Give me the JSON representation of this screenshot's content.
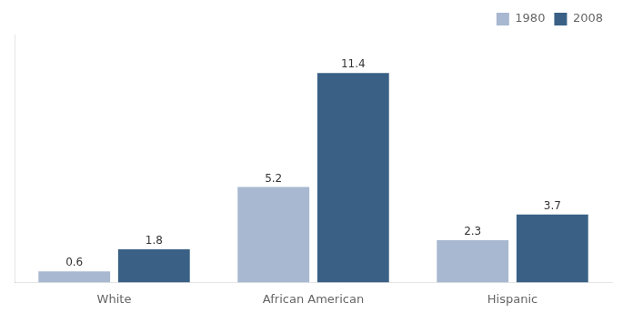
{
  "chart_data": {
    "type": "bar",
    "categories": [
      "White",
      "African American",
      "Hispanic"
    ],
    "series": [
      {
        "name": "1980",
        "color": "#a8b8d0",
        "values": [
          0.6,
          5.2,
          2.3
        ]
      },
      {
        "name": "2008",
        "color": "#3a6185",
        "values": [
          1.8,
          11.4,
          3.7
        ]
      }
    ],
    "ylim": [
      0,
      13.5
    ],
    "data_labels": true,
    "tick_labels": "x",
    "legend": "upper right",
    "grid": false
  }
}
